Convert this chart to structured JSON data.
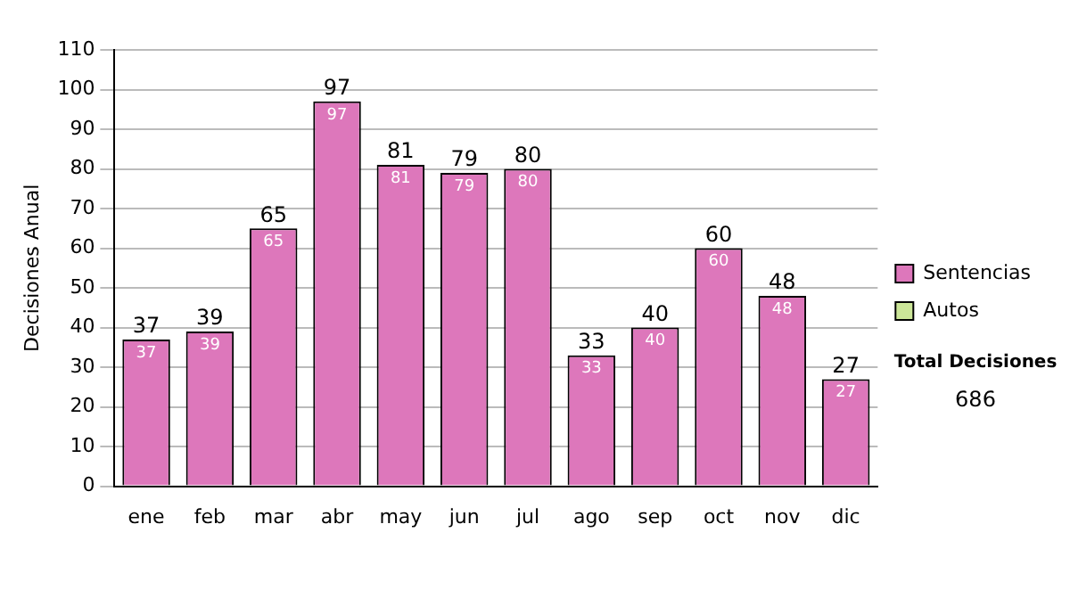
{
  "chart_data": {
    "type": "bar",
    "stacked": true,
    "ylabel": "Decisiones Anual",
    "categories": [
      "ene",
      "feb",
      "mar",
      "abr",
      "may",
      "jun",
      "jul",
      "ago",
      "sep",
      "oct",
      "nov",
      "dic"
    ],
    "series": [
      {
        "name": "Sentencias",
        "color": "#dd77bb",
        "values": [
          37,
          39,
          65,
          97,
          81,
          79,
          80,
          33,
          40,
          60,
          48,
          27
        ],
        "value_labels": [
          "37",
          "39",
          "65",
          "97",
          "81",
          "79",
          "80",
          "33",
          "40",
          "60",
          "48",
          "27"
        ]
      },
      {
        "name": "Autos",
        "color": "#cce699",
        "values": [
          0,
          0,
          0,
          0,
          0,
          0,
          0,
          0,
          0,
          0,
          0,
          0
        ]
      }
    ],
    "totals": [
      "37",
      "39",
      "65",
      "97",
      "81",
      "79",
      "80",
      "33",
      "40",
      "60",
      "48",
      "27"
    ],
    "ylim": [
      0,
      110
    ],
    "yticks": [
      0,
      10,
      20,
      30,
      40,
      50,
      60,
      70,
      80,
      90,
      100,
      110
    ],
    "grid": "y",
    "legend": "right",
    "annotations": [
      "Total Decisiones",
      "686"
    ]
  }
}
